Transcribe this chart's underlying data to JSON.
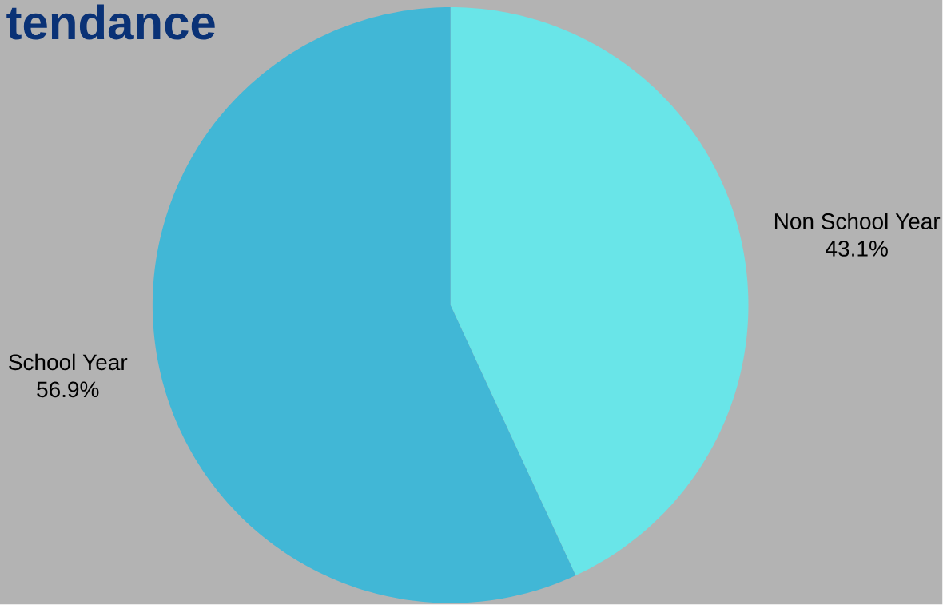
{
  "chart_data": {
    "type": "pie",
    "title": "tendance",
    "categories": [
      "Non School Year",
      "School Year"
    ],
    "values": [
      43.1,
      56.9
    ],
    "colors": [
      "#69e5e8",
      "#41b7d6"
    ],
    "value_labels": [
      "43.1%",
      "56.9%"
    ]
  }
}
